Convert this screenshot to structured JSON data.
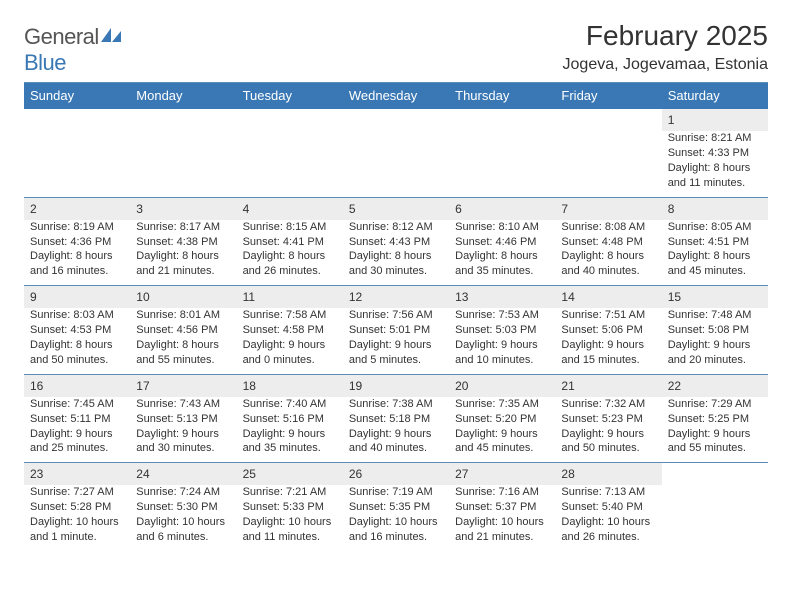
{
  "logo": {
    "word1": "General",
    "word2": "Blue"
  },
  "title": "February 2025",
  "location": "Jogeva, Jogevamaa, Estonia",
  "colors": {
    "header_bg": "#3a78b5",
    "header_text": "#ffffff",
    "daynum_bg": "#ededed",
    "divider": "#5b8cb5",
    "body_text": "#333333"
  },
  "weekdays": [
    "Sunday",
    "Monday",
    "Tuesday",
    "Wednesday",
    "Thursday",
    "Friday",
    "Saturday"
  ],
  "weeks": [
    [
      null,
      null,
      null,
      null,
      null,
      null,
      {
        "n": "1",
        "sr": "Sunrise: 8:21 AM",
        "ss": "Sunset: 4:33 PM",
        "d1": "Daylight: 8 hours",
        "d2": "and 11 minutes."
      }
    ],
    [
      {
        "n": "2",
        "sr": "Sunrise: 8:19 AM",
        "ss": "Sunset: 4:36 PM",
        "d1": "Daylight: 8 hours",
        "d2": "and 16 minutes."
      },
      {
        "n": "3",
        "sr": "Sunrise: 8:17 AM",
        "ss": "Sunset: 4:38 PM",
        "d1": "Daylight: 8 hours",
        "d2": "and 21 minutes."
      },
      {
        "n": "4",
        "sr": "Sunrise: 8:15 AM",
        "ss": "Sunset: 4:41 PM",
        "d1": "Daylight: 8 hours",
        "d2": "and 26 minutes."
      },
      {
        "n": "5",
        "sr": "Sunrise: 8:12 AM",
        "ss": "Sunset: 4:43 PM",
        "d1": "Daylight: 8 hours",
        "d2": "and 30 minutes."
      },
      {
        "n": "6",
        "sr": "Sunrise: 8:10 AM",
        "ss": "Sunset: 4:46 PM",
        "d1": "Daylight: 8 hours",
        "d2": "and 35 minutes."
      },
      {
        "n": "7",
        "sr": "Sunrise: 8:08 AM",
        "ss": "Sunset: 4:48 PM",
        "d1": "Daylight: 8 hours",
        "d2": "and 40 minutes."
      },
      {
        "n": "8",
        "sr": "Sunrise: 8:05 AM",
        "ss": "Sunset: 4:51 PM",
        "d1": "Daylight: 8 hours",
        "d2": "and 45 minutes."
      }
    ],
    [
      {
        "n": "9",
        "sr": "Sunrise: 8:03 AM",
        "ss": "Sunset: 4:53 PM",
        "d1": "Daylight: 8 hours",
        "d2": "and 50 minutes."
      },
      {
        "n": "10",
        "sr": "Sunrise: 8:01 AM",
        "ss": "Sunset: 4:56 PM",
        "d1": "Daylight: 8 hours",
        "d2": "and 55 minutes."
      },
      {
        "n": "11",
        "sr": "Sunrise: 7:58 AM",
        "ss": "Sunset: 4:58 PM",
        "d1": "Daylight: 9 hours",
        "d2": "and 0 minutes."
      },
      {
        "n": "12",
        "sr": "Sunrise: 7:56 AM",
        "ss": "Sunset: 5:01 PM",
        "d1": "Daylight: 9 hours",
        "d2": "and 5 minutes."
      },
      {
        "n": "13",
        "sr": "Sunrise: 7:53 AM",
        "ss": "Sunset: 5:03 PM",
        "d1": "Daylight: 9 hours",
        "d2": "and 10 minutes."
      },
      {
        "n": "14",
        "sr": "Sunrise: 7:51 AM",
        "ss": "Sunset: 5:06 PM",
        "d1": "Daylight: 9 hours",
        "d2": "and 15 minutes."
      },
      {
        "n": "15",
        "sr": "Sunrise: 7:48 AM",
        "ss": "Sunset: 5:08 PM",
        "d1": "Daylight: 9 hours",
        "d2": "and 20 minutes."
      }
    ],
    [
      {
        "n": "16",
        "sr": "Sunrise: 7:45 AM",
        "ss": "Sunset: 5:11 PM",
        "d1": "Daylight: 9 hours",
        "d2": "and 25 minutes."
      },
      {
        "n": "17",
        "sr": "Sunrise: 7:43 AM",
        "ss": "Sunset: 5:13 PM",
        "d1": "Daylight: 9 hours",
        "d2": "and 30 minutes."
      },
      {
        "n": "18",
        "sr": "Sunrise: 7:40 AM",
        "ss": "Sunset: 5:16 PM",
        "d1": "Daylight: 9 hours",
        "d2": "and 35 minutes."
      },
      {
        "n": "19",
        "sr": "Sunrise: 7:38 AM",
        "ss": "Sunset: 5:18 PM",
        "d1": "Daylight: 9 hours",
        "d2": "and 40 minutes."
      },
      {
        "n": "20",
        "sr": "Sunrise: 7:35 AM",
        "ss": "Sunset: 5:20 PM",
        "d1": "Daylight: 9 hours",
        "d2": "and 45 minutes."
      },
      {
        "n": "21",
        "sr": "Sunrise: 7:32 AM",
        "ss": "Sunset: 5:23 PM",
        "d1": "Daylight: 9 hours",
        "d2": "and 50 minutes."
      },
      {
        "n": "22",
        "sr": "Sunrise: 7:29 AM",
        "ss": "Sunset: 5:25 PM",
        "d1": "Daylight: 9 hours",
        "d2": "and 55 minutes."
      }
    ],
    [
      {
        "n": "23",
        "sr": "Sunrise: 7:27 AM",
        "ss": "Sunset: 5:28 PM",
        "d1": "Daylight: 10 hours",
        "d2": "and 1 minute."
      },
      {
        "n": "24",
        "sr": "Sunrise: 7:24 AM",
        "ss": "Sunset: 5:30 PM",
        "d1": "Daylight: 10 hours",
        "d2": "and 6 minutes."
      },
      {
        "n": "25",
        "sr": "Sunrise: 7:21 AM",
        "ss": "Sunset: 5:33 PM",
        "d1": "Daylight: 10 hours",
        "d2": "and 11 minutes."
      },
      {
        "n": "26",
        "sr": "Sunrise: 7:19 AM",
        "ss": "Sunset: 5:35 PM",
        "d1": "Daylight: 10 hours",
        "d2": "and 16 minutes."
      },
      {
        "n": "27",
        "sr": "Sunrise: 7:16 AM",
        "ss": "Sunset: 5:37 PM",
        "d1": "Daylight: 10 hours",
        "d2": "and 21 minutes."
      },
      {
        "n": "28",
        "sr": "Sunrise: 7:13 AM",
        "ss": "Sunset: 5:40 PM",
        "d1": "Daylight: 10 hours",
        "d2": "and 26 minutes."
      },
      null
    ]
  ]
}
